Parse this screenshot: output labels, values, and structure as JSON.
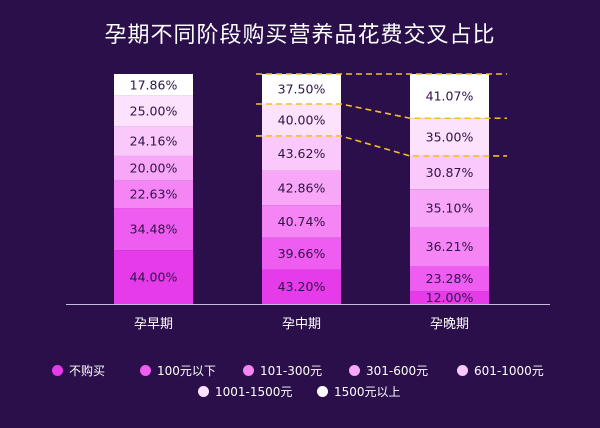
{
  "chart_data": {
    "type": "bar",
    "stacked": true,
    "normalized": true,
    "title": "孕期不同阶段购买营养品花费交叉占比",
    "categories": [
      "孕早期",
      "孕中期",
      "孕晚期"
    ],
    "series": [
      {
        "name": "不购买",
        "color": "#e63be9",
        "values": [
          44.0,
          43.2,
          12.0
        ]
      },
      {
        "name": "100元以下",
        "color": "#ef5cf0",
        "values": [
          34.48,
          39.66,
          23.28
        ]
      },
      {
        "name": "101-300元",
        "color": "#f584f5",
        "values": [
          22.63,
          40.74,
          36.21
        ]
      },
      {
        "name": "301-600元",
        "color": "#f8a6f8",
        "values": [
          20.0,
          42.86,
          35.1
        ]
      },
      {
        "name": "601-1000元",
        "color": "#fbc8fb",
        "values": [
          24.16,
          43.62,
          30.87
        ]
      },
      {
        "name": "1001-1500元",
        "color": "#fde2fd",
        "values": [
          25.0,
          40.0,
          35.0
        ]
      },
      {
        "name": "1500元以上",
        "color": "#ffffff",
        "values": [
          17.86,
          37.5,
          41.07
        ]
      }
    ],
    "value_labels": [
      [
        "44.00%",
        "34.48%",
        "22.63%",
        "20.00%",
        "24.16%",
        "25.00%",
        "17.86%"
      ],
      [
        "43.20%",
        "39.66%",
        "40.74%",
        "42.86%",
        "43.62%",
        "40.00%",
        "37.50%"
      ],
      [
        "12.00%",
        "23.28%",
        "36.21%",
        "35.10%",
        "30.87%",
        "35.00%",
        "41.07%"
      ]
    ],
    "connector_color": "#f3c020",
    "legend_position": "bottom"
  }
}
